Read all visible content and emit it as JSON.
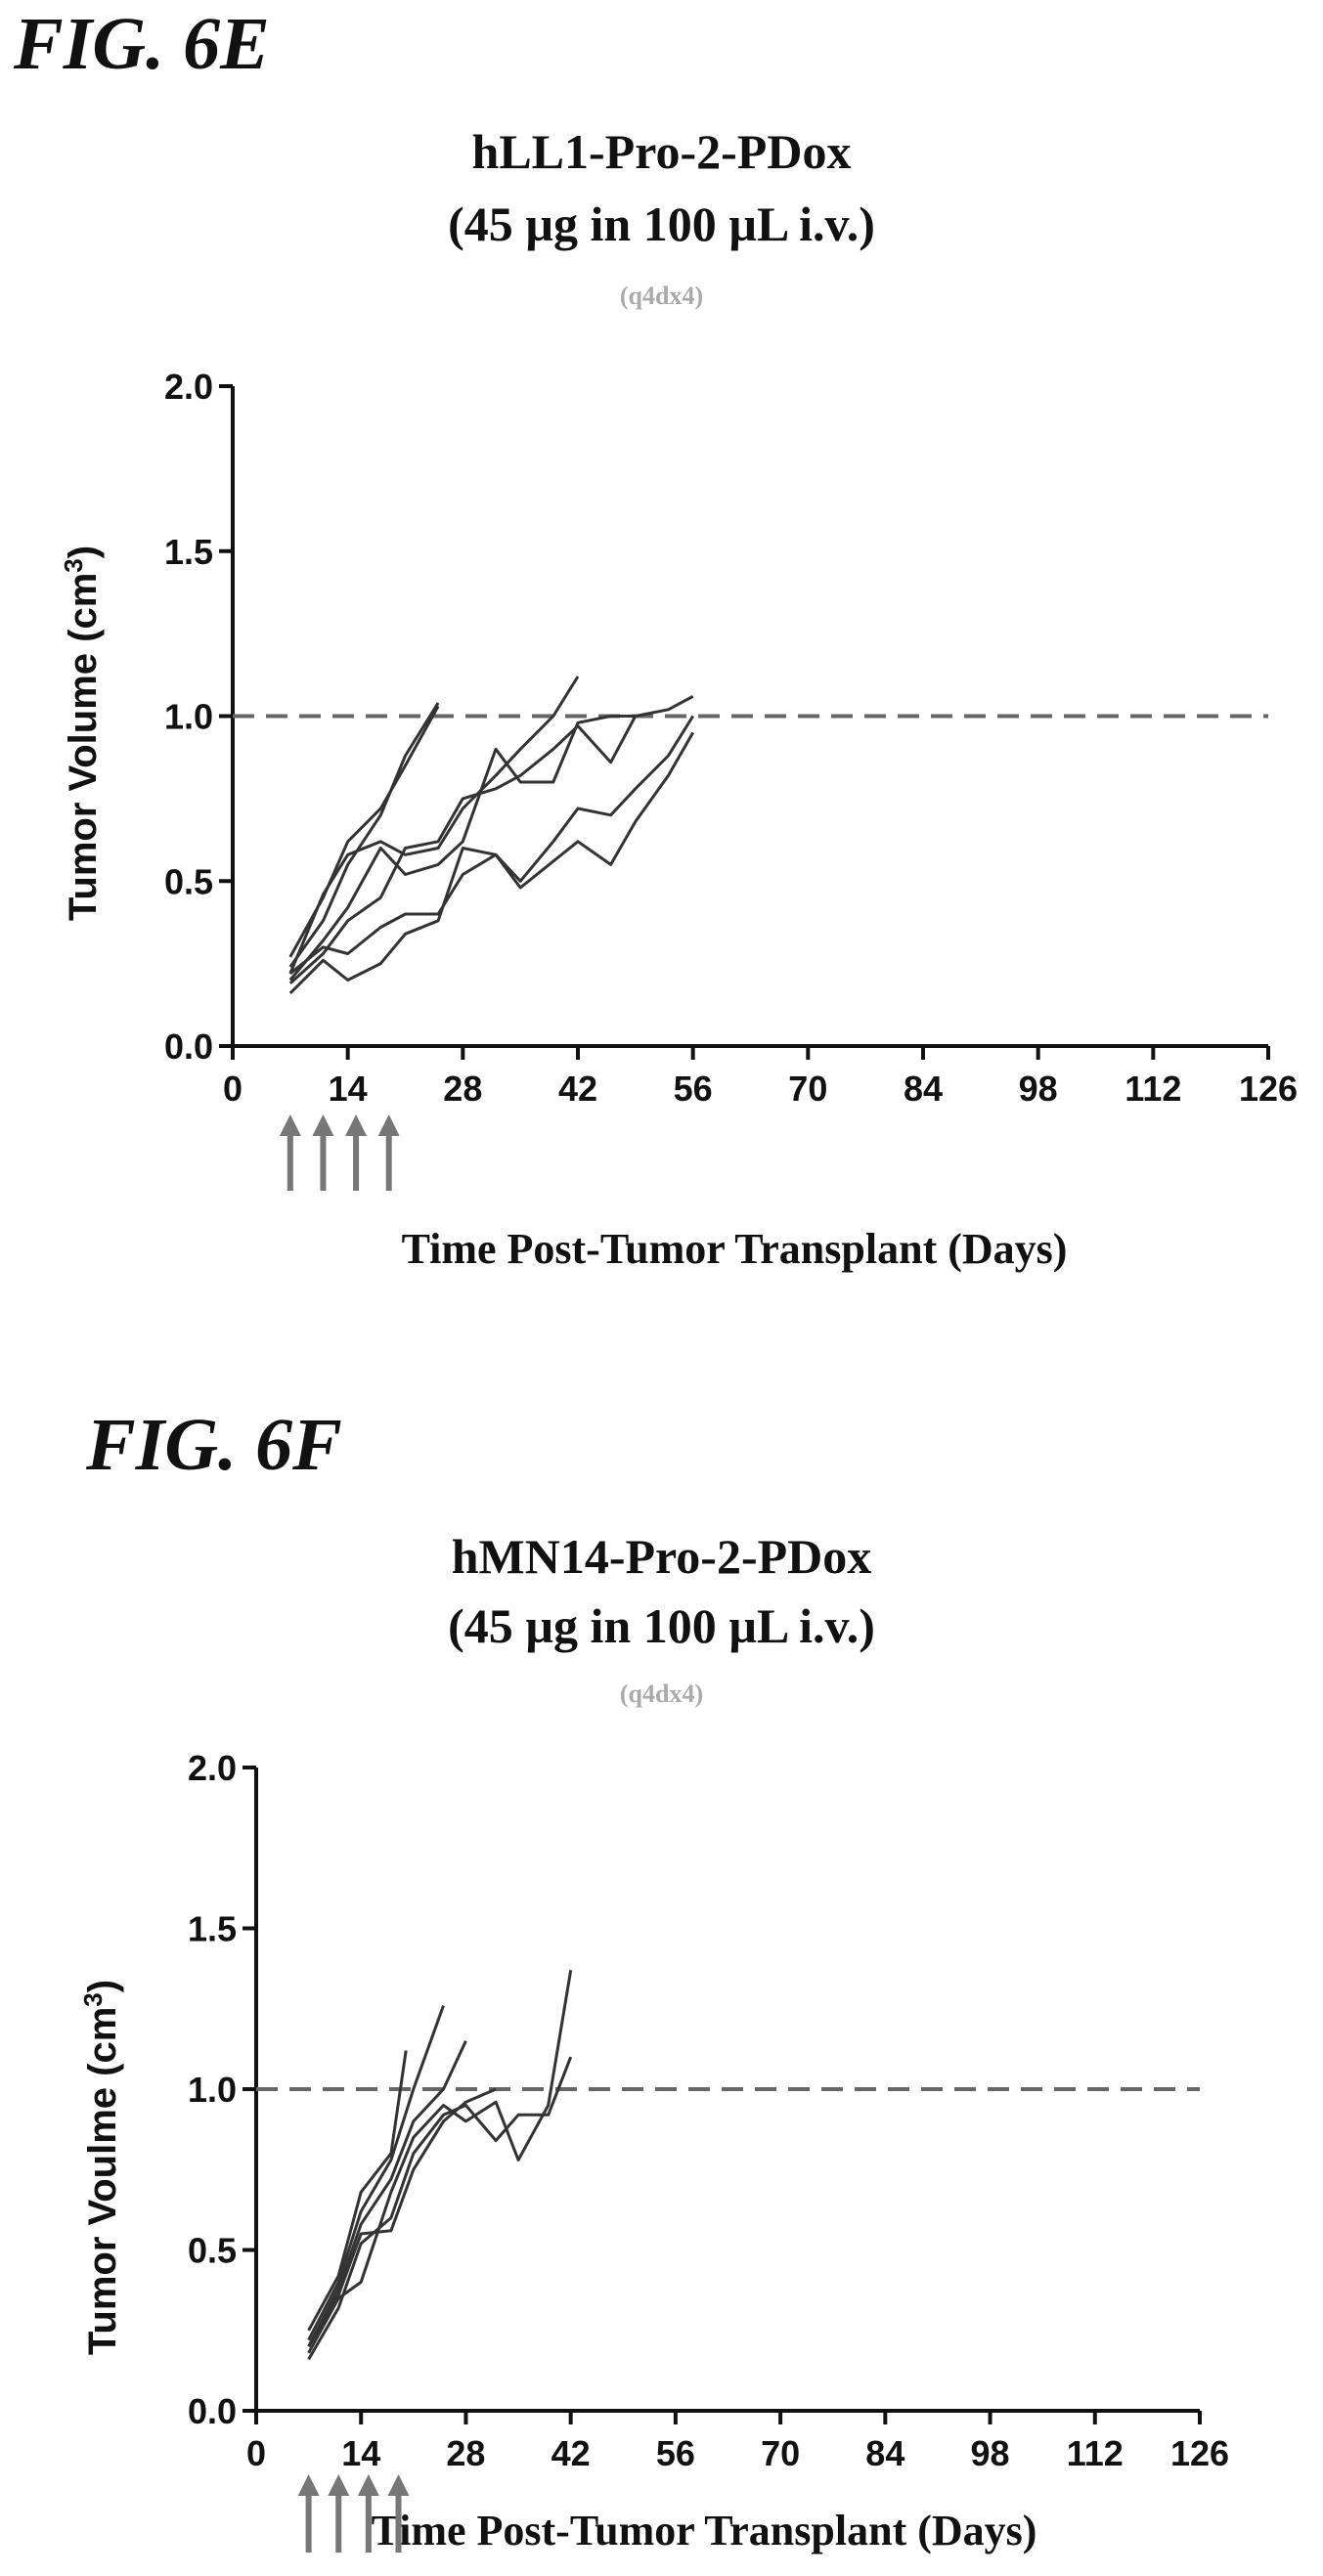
{
  "figures": [
    {
      "label": "FIG. 6E",
      "title": "hLL1-Pro-2-PDox",
      "subtitle": "(45 µg in 100 µL i.v.)",
      "note": "(q4dx4)",
      "ylabel": "Tumor Volume (cm",
      "ylabel_sup": "3",
      "ylabel_close": ")",
      "xlabel": "Time Post-Tumor Transplant (Days)",
      "dose_arrow_days": [
        7,
        11,
        15,
        19
      ]
    },
    {
      "label": "FIG. 6F",
      "title": "hMN14-Pro-2-PDox",
      "subtitle": "(45 µg in 100 µL i.v.)",
      "note": "(q4dx4)",
      "ylabel": "Tumor Voulme (cm",
      "ylabel_sup": "3",
      "ylabel_close": ")",
      "xlabel": "Time Post-Tumor Transplant (Days)",
      "dose_arrow_days": [
        7,
        11,
        15,
        19
      ]
    }
  ],
  "chart_data": [
    {
      "type": "line",
      "title": "hLL1-Pro-2-PDox",
      "xlabel": "Time Post-Tumor Transplant (Days)",
      "ylabel": "Tumor Volume (cm3)",
      "xlim": [
        0,
        126
      ],
      "ylim": [
        0,
        2.0
      ],
      "xticks": [
        0,
        14,
        28,
        42,
        56,
        70,
        84,
        98,
        112,
        126
      ],
      "yticks": [
        "0.0",
        "0.5",
        "1.0",
        "1.5",
        "2.0"
      ],
      "reference_line": 1.0,
      "line_color": "#333333",
      "ref_color": "#666666",
      "arrow_color": "#777777",
      "series": [
        {
          "x": [
            7,
            11,
            14,
            18,
            21,
            25
          ],
          "y": [
            0.27,
            0.45,
            0.62,
            0.72,
            0.85,
            1.03
          ]
        },
        {
          "x": [
            7,
            11,
            14,
            18,
            21,
            25
          ],
          "y": [
            0.24,
            0.38,
            0.55,
            0.7,
            0.88,
            1.04
          ]
        },
        {
          "x": [
            7,
            11,
            14,
            18,
            21,
            25,
            28,
            32,
            35,
            39,
            42
          ],
          "y": [
            0.22,
            0.46,
            0.58,
            0.62,
            0.58,
            0.6,
            0.72,
            0.82,
            0.9,
            1.0,
            1.12
          ]
        },
        {
          "x": [
            7,
            11,
            14,
            18,
            21,
            25,
            28,
            32,
            35,
            39,
            42,
            46,
            49
          ],
          "y": [
            0.2,
            0.32,
            0.42,
            0.6,
            0.52,
            0.55,
            0.62,
            0.9,
            0.8,
            0.8,
            0.98,
            1.0,
            1.0
          ]
        },
        {
          "x": [
            7,
            11,
            14,
            18,
            21,
            25,
            28,
            32,
            35,
            39,
            42,
            46,
            49,
            53,
            56
          ],
          "y": [
            0.19,
            0.28,
            0.38,
            0.45,
            0.6,
            0.62,
            0.75,
            0.78,
            0.82,
            0.9,
            0.97,
            0.86,
            1.0,
            1.02,
            1.06
          ]
        },
        {
          "x": [
            7,
            11,
            14,
            18,
            21,
            25,
            28,
            32,
            35,
            39,
            42,
            46,
            49,
            53,
            56
          ],
          "y": [
            0.16,
            0.26,
            0.2,
            0.25,
            0.34,
            0.38,
            0.6,
            0.58,
            0.5,
            0.62,
            0.72,
            0.7,
            0.78,
            0.88,
            1.0
          ]
        },
        {
          "x": [
            7,
            11,
            14,
            18,
            21,
            25,
            28,
            32,
            35,
            39,
            42,
            46,
            49,
            53,
            56
          ],
          "y": [
            0.22,
            0.3,
            0.28,
            0.36,
            0.4,
            0.4,
            0.52,
            0.58,
            0.48,
            0.56,
            0.62,
            0.55,
            0.68,
            0.82,
            0.95
          ]
        }
      ]
    },
    {
      "type": "line",
      "title": "hMN14-Pro-2-PDox",
      "xlabel": "Time Post-Tumor Transplant (Days)",
      "ylabel": "Tumor Voulme (cm3)",
      "xlim": [
        0,
        126
      ],
      "ylim": [
        0,
        2.0
      ],
      "xticks": [
        0,
        14,
        28,
        42,
        56,
        70,
        84,
        98,
        112,
        126
      ],
      "yticks": [
        "0.0",
        "0.5",
        "1.0",
        "1.5",
        "2.0"
      ],
      "reference_line": 1.0,
      "line_color": "#333333",
      "ref_color": "#666666",
      "arrow_color": "#777777",
      "series": [
        {
          "x": [
            7,
            11,
            14,
            18,
            20
          ],
          "y": [
            0.25,
            0.42,
            0.68,
            0.8,
            1.12
          ]
        },
        {
          "x": [
            7,
            11,
            14,
            18,
            21,
            25
          ],
          "y": [
            0.22,
            0.4,
            0.62,
            0.78,
            1.0,
            1.26
          ]
        },
        {
          "x": [
            7,
            11,
            14,
            18,
            21,
            25,
            28
          ],
          "y": [
            0.2,
            0.38,
            0.58,
            0.72,
            0.9,
            1.0,
            1.15
          ]
        },
        {
          "x": [
            7,
            11,
            14,
            18,
            21,
            25,
            28,
            32,
            35,
            39,
            42
          ],
          "y": [
            0.18,
            0.35,
            0.4,
            0.68,
            0.85,
            0.95,
            0.9,
            0.96,
            0.78,
            0.95,
            1.37
          ]
        },
        {
          "x": [
            7,
            11,
            14,
            18,
            21,
            25,
            28,
            32,
            35,
            39,
            42
          ],
          "y": [
            0.16,
            0.32,
            0.52,
            0.6,
            0.8,
            0.92,
            0.95,
            0.84,
            0.92,
            0.92,
            1.1
          ]
        },
        {
          "x": [
            7,
            11,
            14,
            18,
            21,
            25,
            28,
            32
          ],
          "y": [
            0.2,
            0.36,
            0.55,
            0.56,
            0.75,
            0.9,
            0.96,
            1.0
          ]
        }
      ]
    }
  ]
}
